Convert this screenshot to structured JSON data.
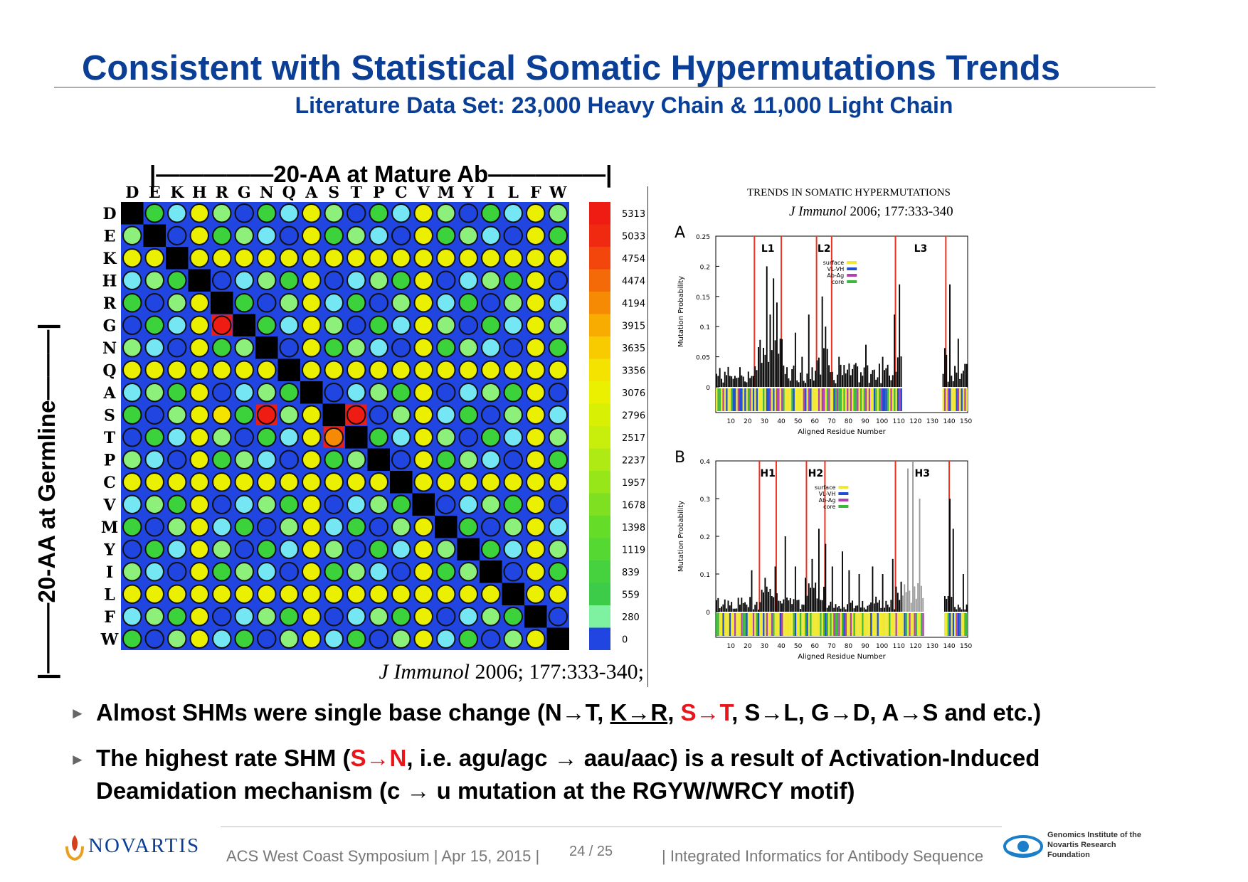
{
  "slide": {
    "title": "Consistent with Statistical Somatic Hypermutations Trends",
    "subtitle": "Literature Data Set: 23,000 Heavy Chain & 11,000 Light Chain"
  },
  "heatmap": {
    "col_header": "|—————20-AA at Mature Ab—————|",
    "row_header": "|———20-AA at Germline———|",
    "citation": "J Immunol 2006; 177:333-340;",
    "citation_journal": "J Immunol",
    "citation_rest": "2006; 177:333-340;"
  },
  "trends": {
    "title": "TRENDS IN SOMATIC HYPERMUTATIONS",
    "citation_journal": "J Immunol",
    "citation_rest": "2006; 177:333-340",
    "y_axis_label": "Mutation Probability",
    "x_axis_label": "Aligned Residue Number",
    "legend": [
      "surface",
      "VL-VH",
      "Ab-Ag",
      "core"
    ]
  },
  "bullets": {
    "b1_a": "Almost SHMs were single base change (N→T, ",
    "b1_kr": "K→R",
    "b1_comma": ", ",
    "b1_st": "S→T",
    "b1_b": ", S→L, G→D, A→S and etc.)",
    "b2_a": "The highest rate SHM (",
    "b2_sn": "S→N",
    "b2_b": ", i.e. agu/agc → aau/aac) is a result of Activation-Induced Deamidation mechanism (c → u mutation at the RGYW/WRCY motif)"
  },
  "footer": {
    "logo": "NOVARTIS",
    "left": "ACS West Coast Symposium | Apr 15, 2015 |",
    "page": "24 / 25",
    "right": "| Integrated Informatics for Antibody Sequence",
    "gnf_line1": "Genomics Institute of the",
    "gnf_line2": "Novartis Research",
    "gnf_line3": "Foundation"
  },
  "colors": {
    "title": "#0b3f96",
    "accent_red": "#e8151b",
    "bar_black": "#000000",
    "surface": "#f0e832",
    "vl_vh": "#1f4fcf",
    "ab_ag": "#b040b0",
    "core": "#3cb83c"
  },
  "chart_data": [
    {
      "type": "heatmap",
      "amino_acids": [
        "D",
        "E",
        "K",
        "H",
        "R",
        "G",
        "N",
        "Q",
        "A",
        "S",
        "T",
        "P",
        "C",
        "V",
        "M",
        "Y",
        "I",
        "L",
        "F",
        "W"
      ],
      "xlabel": "20-AA at Mature Ab",
      "ylabel": "20-AA at Germline",
      "colorbar": [
        5313,
        5033,
        4754,
        4474,
        4194,
        3915,
        3635,
        3356,
        3076,
        2796,
        2517,
        2237,
        1957,
        1678,
        1398,
        1119,
        839,
        559,
        280,
        0
      ],
      "colorbar_colors": [
        "#ee1c12",
        "#ef2a10",
        "#f2460c",
        "#f46a08",
        "#f78a04",
        "#f8ac02",
        "#f8ca00",
        "#f4e200",
        "#eaf000",
        "#d8f004",
        "#c8ee0c",
        "#b0ea14",
        "#96e61a",
        "#7ee020",
        "#64dc28",
        "#55d832",
        "#45d23e",
        "#3ccc4a",
        "#7ef2a0",
        "#2045e0"
      ],
      "cells": [
        [
          -1,
          1,
          2,
          1,
          1,
          1,
          1,
          1,
          1,
          1,
          1,
          1,
          1,
          1,
          1,
          1,
          1,
          1,
          1,
          1
        ],
        [
          2,
          -1,
          1,
          1,
          1,
          1,
          1,
          1,
          1,
          1,
          1,
          1,
          1,
          1,
          1,
          1,
          1,
          1,
          1,
          1
        ],
        [
          1,
          2,
          -1,
          1,
          1,
          1,
          1,
          1,
          1,
          1,
          1,
          1,
          1,
          1,
          1,
          1,
          1,
          1,
          1,
          1
        ],
        [
          1,
          1,
          1,
          -1,
          1,
          1,
          1,
          1,
          1,
          1,
          1,
          1,
          1,
          1,
          1,
          1,
          1,
          1,
          1,
          1
        ],
        [
          1,
          1,
          1,
          1,
          -1,
          1,
          1,
          1,
          1,
          1,
          1,
          1,
          1,
          1,
          1,
          1,
          1,
          1,
          1,
          1
        ],
        [
          2,
          1,
          1,
          1,
          6,
          -1,
          1,
          1,
          1,
          1,
          1,
          1,
          1,
          1,
          1,
          1,
          1,
          1,
          1,
          1
        ],
        [
          1,
          1,
          1,
          1,
          1,
          1,
          -1,
          1,
          1,
          1,
          1,
          1,
          1,
          1,
          1,
          1,
          1,
          1,
          1,
          1
        ],
        [
          1,
          1,
          1,
          1,
          1,
          1,
          1,
          -1,
          1,
          1,
          1,
          1,
          1,
          1,
          1,
          1,
          1,
          1,
          1,
          1
        ],
        [
          1,
          1,
          1,
          1,
          1,
          1,
          1,
          1,
          -1,
          1,
          1,
          1,
          1,
          1,
          1,
          1,
          1,
          1,
          1,
          1
        ],
        [
          1,
          1,
          1,
          1,
          4,
          1,
          6,
          1,
          1,
          -1,
          6,
          1,
          1,
          1,
          1,
          1,
          1,
          1,
          1,
          1
        ],
        [
          1,
          1,
          1,
          1,
          1,
          1,
          1,
          1,
          1,
          5,
          -1,
          1,
          1,
          1,
          1,
          1,
          1,
          1,
          1,
          1
        ],
        [
          1,
          1,
          1,
          1,
          1,
          1,
          1,
          1,
          1,
          1,
          1,
          -1,
          1,
          1,
          1,
          1,
          1,
          1,
          1,
          1
        ],
        [
          1,
          1,
          1,
          1,
          1,
          1,
          1,
          1,
          1,
          1,
          1,
          1,
          -1,
          1,
          1,
          1,
          1,
          1,
          1,
          1
        ],
        [
          1,
          1,
          1,
          1,
          1,
          1,
          1,
          1,
          1,
          1,
          1,
          1,
          1,
          -1,
          1,
          1,
          1,
          1,
          1,
          1
        ],
        [
          1,
          1,
          1,
          1,
          1,
          1,
          1,
          1,
          1,
          1,
          1,
          1,
          1,
          1,
          -1,
          1,
          1,
          1,
          1,
          1
        ],
        [
          1,
          1,
          1,
          1,
          1,
          1,
          1,
          1,
          1,
          1,
          1,
          1,
          1,
          1,
          1,
          -1,
          1,
          1,
          1,
          1
        ],
        [
          1,
          1,
          1,
          1,
          1,
          1,
          1,
          1,
          1,
          1,
          1,
          1,
          1,
          1,
          1,
          1,
          -1,
          1,
          1,
          1
        ],
        [
          1,
          1,
          1,
          1,
          1,
          1,
          1,
          1,
          1,
          1,
          1,
          1,
          1,
          1,
          1,
          1,
          1,
          -1,
          1,
          1
        ],
        [
          1,
          1,
          1,
          1,
          1,
          1,
          1,
          1,
          1,
          1,
          1,
          1,
          1,
          1,
          1,
          1,
          1,
          1,
          -1,
          1
        ],
        [
          1,
          1,
          1,
          1,
          1,
          1,
          1,
          1,
          1,
          1,
          1,
          1,
          1,
          1,
          1,
          1,
          1,
          1,
          1,
          -1
        ]
      ],
      "cell_level_colors": {
        "0": "#2045e0",
        "1": "#2045e0",
        "2": "#8df07a",
        "3": "#eaf000",
        "4": "#f4e200",
        "5": "#f78a04",
        "6": "#ee1c12"
      }
    },
    {
      "type": "bar",
      "panel": "A",
      "ylim": [
        0,
        0.25
      ],
      "yticks": [
        0,
        0.05,
        0.1,
        0.15,
        0.2,
        0.25
      ],
      "xticks": [
        10,
        20,
        30,
        40,
        50,
        60,
        70,
        80,
        90,
        100,
        110,
        120,
        130,
        140,
        150
      ],
      "xlabel": "Aligned Residue Number",
      "ylabel": "Mutation Probability",
      "regions": [
        "L1",
        "L2",
        "L3"
      ],
      "region_boundaries": [
        24,
        40,
        61,
        70,
        108,
        138
      ],
      "peaks": [
        [
          28,
          0.04
        ],
        [
          31,
          0.2
        ],
        [
          33,
          0.12
        ],
        [
          35,
          0.18
        ],
        [
          37,
          0.14
        ],
        [
          39,
          0.08
        ],
        [
          48,
          0.09
        ],
        [
          52,
          0.05
        ],
        [
          56,
          0.12
        ],
        [
          64,
          0.15
        ],
        [
          66,
          0.1
        ],
        [
          74,
          0.05
        ],
        [
          90,
          0.07
        ],
        [
          100,
          0.05
        ],
        [
          107,
          0.12
        ],
        [
          110,
          0.17
        ],
        [
          140,
          0.17
        ],
        [
          145,
          0.08
        ]
      ],
      "gap": [
        112,
        135
      ]
    },
    {
      "type": "bar",
      "panel": "B",
      "ylim": [
        0,
        0.4
      ],
      "yticks": [
        0,
        0.1,
        0.2,
        0.3,
        0.4
      ],
      "xticks": [
        10,
        20,
        30,
        40,
        50,
        60,
        70,
        80,
        90,
        100,
        110,
        120,
        130,
        140,
        150
      ],
      "xlabel": "Aligned Residue Number",
      "ylabel": "Mutation Probability",
      "regions": [
        "H1",
        "H2",
        "H3"
      ],
      "region_boundaries": [
        27,
        37,
        55,
        66,
        108,
        140
      ],
      "peaks": [
        [
          22,
          0.11
        ],
        [
          30,
          0.09
        ],
        [
          36,
          0.12
        ],
        [
          42,
          0.2
        ],
        [
          48,
          0.12
        ],
        [
          54,
          0.09
        ],
        [
          58,
          0.14
        ],
        [
          62,
          0.22
        ],
        [
          66,
          0.18
        ],
        [
          70,
          0.12
        ],
        [
          76,
          0.16
        ],
        [
          80,
          0.11
        ],
        [
          86,
          0.1
        ],
        [
          94,
          0.12
        ],
        [
          100,
          0.1
        ],
        [
          106,
          0.14
        ],
        [
          115,
          0.38
        ],
        [
          118,
          0.4
        ],
        [
          122,
          0.3
        ],
        [
          140,
          0.3
        ],
        [
          142,
          0.22
        ],
        [
          148,
          0.1
        ]
      ],
      "gap": [
        125,
        136
      ]
    }
  ]
}
